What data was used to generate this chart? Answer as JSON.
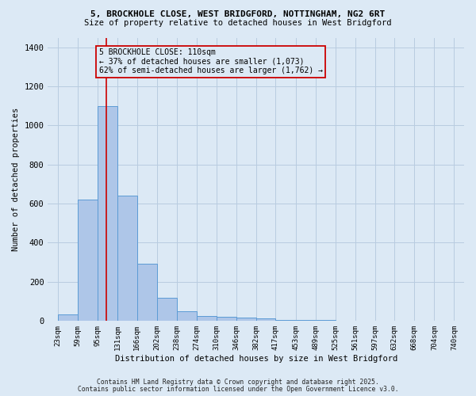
{
  "title_line1": "5, BROCKHOLE CLOSE, WEST BRIDGFORD, NOTTINGHAM, NG2 6RT",
  "title_line2": "Size of property relative to detached houses in West Bridgford",
  "xlabel": "Distribution of detached houses by size in West Bridgford",
  "ylabel": "Number of detached properties",
  "bar_left_edges": [
    23,
    59,
    95,
    131,
    166,
    202,
    238,
    274,
    310,
    346,
    382,
    417,
    453,
    489,
    525,
    561,
    597,
    632,
    668,
    704
  ],
  "bar_widths": [
    36,
    36,
    36,
    35,
    36,
    36,
    36,
    36,
    36,
    36,
    35,
    36,
    36,
    36,
    36,
    36,
    35,
    36,
    36,
    36
  ],
  "bar_heights": [
    30,
    620,
    1100,
    640,
    290,
    115,
    50,
    25,
    20,
    15,
    10,
    5,
    3,
    2,
    1,
    1,
    0,
    0,
    0,
    0
  ],
  "bar_color": "#aec6e8",
  "bar_edgecolor": "#5b9bd5",
  "xtick_labels": [
    "23sqm",
    "59sqm",
    "95sqm",
    "131sqm",
    "166sqm",
    "202sqm",
    "238sqm",
    "274sqm",
    "310sqm",
    "346sqm",
    "382sqm",
    "417sqm",
    "453sqm",
    "489sqm",
    "525sqm",
    "561sqm",
    "597sqm",
    "632sqm",
    "668sqm",
    "704sqm",
    "740sqm"
  ],
  "xtick_positions": [
    23,
    59,
    95,
    131,
    166,
    202,
    238,
    274,
    310,
    346,
    382,
    417,
    453,
    489,
    525,
    561,
    597,
    632,
    668,
    704,
    740
  ],
  "ylim": [
    0,
    1450
  ],
  "xlim": [
    5,
    758
  ],
  "property_size": 110,
  "red_line_color": "#cc0000",
  "annotation_text": "5 BROCKHOLE CLOSE: 110sqm\n← 37% of detached houses are smaller (1,073)\n62% of semi-detached houses are larger (1,762) →",
  "bg_color": "#dce9f5",
  "grid_color": "#b8cce0",
  "footer_line1": "Contains HM Land Registry data © Crown copyright and database right 2025.",
  "footer_line2": "Contains public sector information licensed under the Open Government Licence v3.0."
}
